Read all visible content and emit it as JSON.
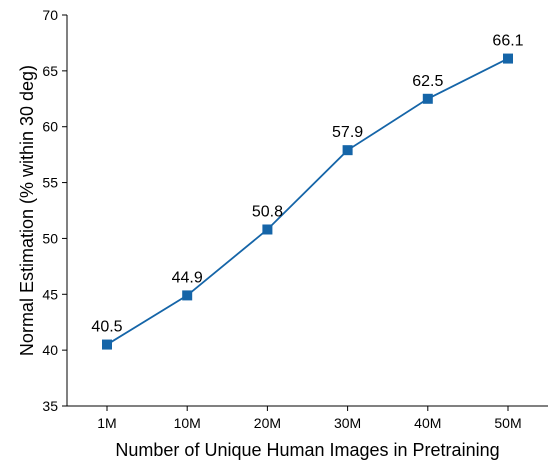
{
  "chart_data": {
    "type": "line",
    "categories": [
      "1M",
      "10M",
      "20M",
      "30M",
      "40M",
      "50M"
    ],
    "series": [
      {
        "values": [
          40.5,
          44.9,
          50.8,
          57.9,
          62.5,
          66.1
        ],
        "color": "#1565a8",
        "marker": "square"
      }
    ],
    "data_labels": [
      "40.5",
      "44.9",
      "50.8",
      "57.9",
      "62.5",
      "66.1"
    ],
    "xlabel": "Number of Unique Human Images in Pretraining",
    "ylabel": "Normal Estimation (% within 30 deg)",
    "ylim": [
      35,
      70
    ],
    "yticks": [
      35,
      40,
      45,
      50,
      55,
      60,
      65,
      70
    ],
    "grid": false,
    "legend": "none"
  }
}
